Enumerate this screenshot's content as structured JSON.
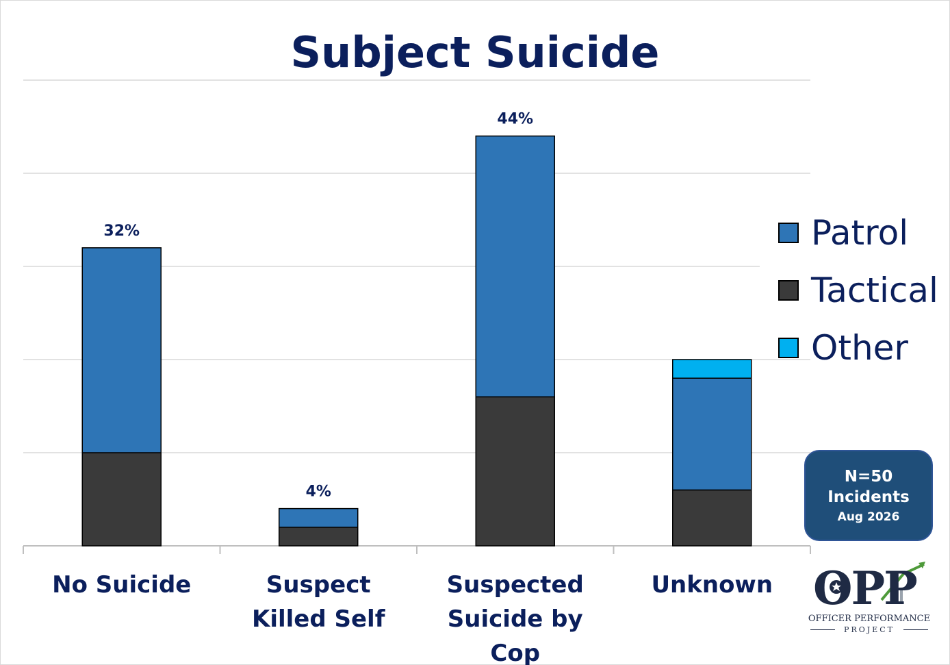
{
  "chart_data": {
    "type": "bar",
    "stacked": true,
    "title": "Subject Suicide",
    "categories": [
      "No Suicide",
      "Suspect Killed Self",
      "Suspected Suicide by Cop",
      "Unknown"
    ],
    "series": [
      {
        "name": "Tactical",
        "color": "#3a3a3a",
        "values": [
          10,
          2,
          16,
          6
        ]
      },
      {
        "name": "Patrol",
        "color": "#2e75b6",
        "values": [
          22,
          2,
          28,
          12
        ]
      },
      {
        "name": "Other",
        "color": "#00b0f0",
        "values": [
          0,
          0,
          0,
          2
        ]
      }
    ],
    "totals_labels": [
      "32%",
      "4%",
      "44%",
      ""
    ],
    "ylim": [
      0,
      50
    ],
    "grid": true,
    "legend": "right",
    "legend_order": [
      "Patrol",
      "Tactical",
      "Other"
    ]
  },
  "info_box": {
    "line1": "N=50",
    "line2": "Incidents",
    "line3": "Aug 2026"
  },
  "logo": {
    "letters": "OPP",
    "line1": "OFFICER PERFORMANCE",
    "line2": "PROJECT"
  }
}
